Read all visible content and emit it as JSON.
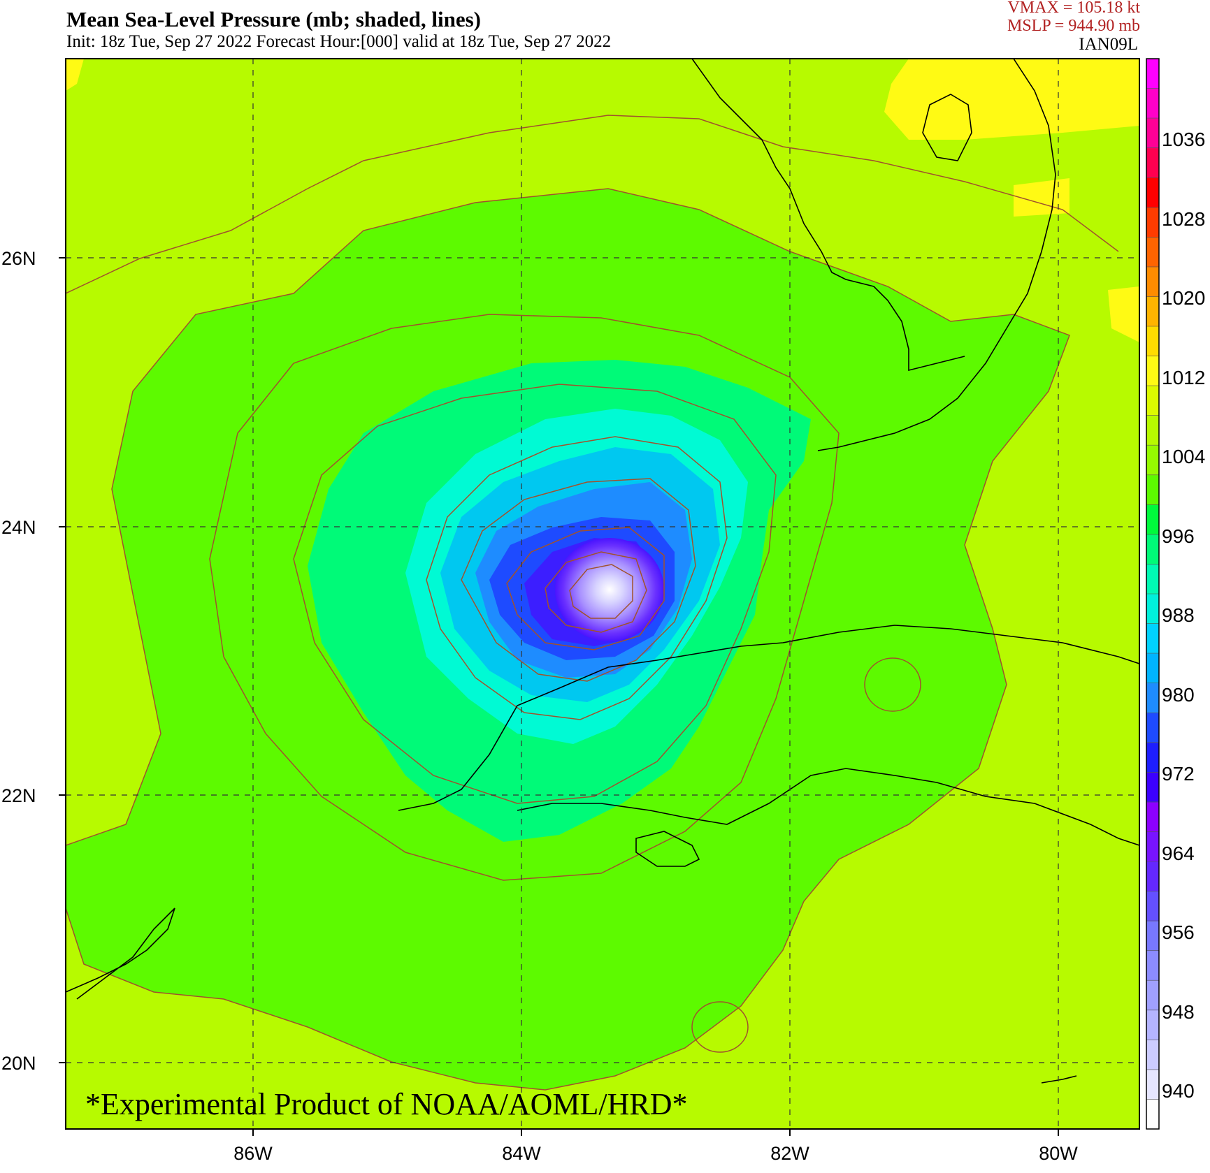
{
  "header": {
    "title": "Mean Sea-Level Pressure (mb; shaded, lines)",
    "subtitle": "Init: 18z Tue, Sep 27 2022  Forecast Hour:[000]  valid at 18z Tue, Sep 27 2022",
    "vmax": "VMAX =  105.18 kt",
    "mslp": "MSLP =  944.90 mb",
    "storm_id": "IAN09L"
  },
  "map": {
    "lat_labels": [
      "26N",
      "24N",
      "22N",
      "20N"
    ],
    "lon_labels": [
      "86W",
      "84W",
      "82W",
      "80W"
    ],
    "watermark": "*Experimental Product of NOAA/AOML/HRD*",
    "grid_style": "dashed",
    "colors": {
      "background_field": "#b7fa00",
      "field_1004": "#5dfa00",
      "field_1000": "#00fa78",
      "field_996": "#00fad4",
      "field_992": "#00c8f0",
      "field_988": "#1e8cff",
      "field_984": "#1e4bff",
      "field_980": "#3c1eff",
      "field_1012": "#fffa14",
      "coastline": "#000000",
      "isobar": "#a0522d"
    }
  },
  "colorbar": {
    "labels": [
      "1036",
      "1028",
      "1020",
      "1012",
      "1004",
      "996",
      "988",
      "980",
      "972",
      "964",
      "956",
      "948",
      "940"
    ],
    "colors": [
      "#ffffff",
      "#e6e6ff",
      "#ccccff",
      "#b4b4ff",
      "#a0a0ff",
      "#8c8cff",
      "#7878ff",
      "#6450ff",
      "#6428ff",
      "#7814ff",
      "#8c00ff",
      "#3c00ff",
      "#1e1eff",
      "#1e4bff",
      "#1e8cff",
      "#00b4ff",
      "#00d2ff",
      "#00f0dc",
      "#00fab4",
      "#00fa78",
      "#00fa3c",
      "#5dfa00",
      "#96fa00",
      "#b7fa00",
      "#dcfa00",
      "#fffa14",
      "#ffdc00",
      "#ffb400",
      "#ff8c00",
      "#ff6400",
      "#ff3c00",
      "#ff0000",
      "#ff0050",
      "#ff0096",
      "#ff00c8",
      "#ff00ff"
    ]
  }
}
